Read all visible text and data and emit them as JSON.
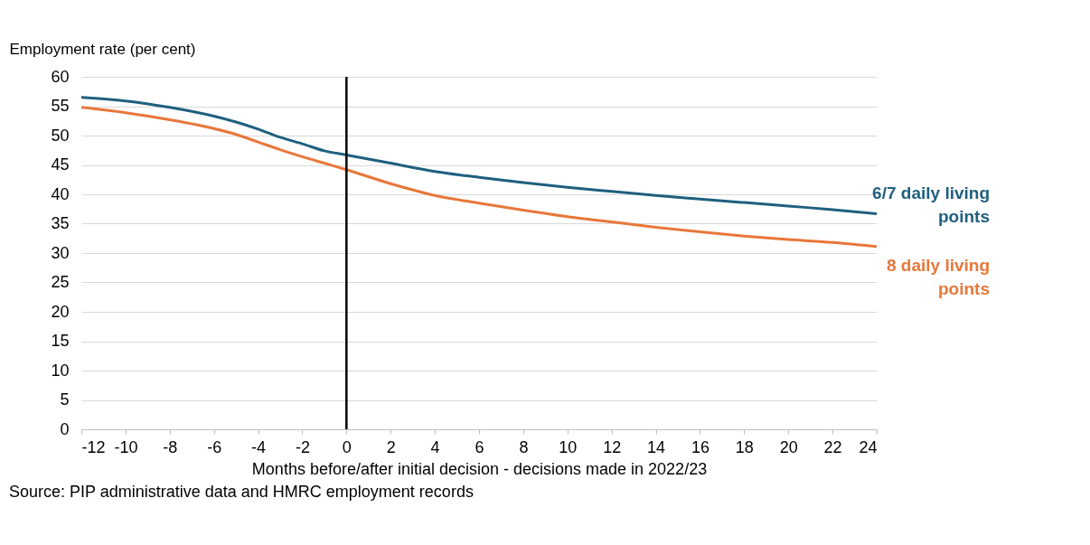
{
  "chart_data": {
    "type": "line",
    "xlabel": "Months before/after initial decision - decisions made in 2022/23",
    "ylabel": "Employment rate (per cent)",
    "x": [
      -12,
      -10,
      -8,
      -6,
      -5,
      -4,
      -3,
      -2,
      -1,
      0,
      2,
      4,
      6,
      8,
      10,
      12,
      14,
      16,
      18,
      20,
      22,
      24
    ],
    "series": [
      {
        "name": "6/7 daily living points",
        "color": "#1f5f7f",
        "values": [
          56.5,
          55.9,
          54.8,
          53.3,
          52.3,
          51.1,
          49.7,
          48.6,
          47.4,
          46.7,
          45.3,
          43.9,
          42.9,
          42.0,
          41.2,
          40.5,
          39.8,
          39.2,
          38.6,
          38.0,
          37.4,
          36.7
        ]
      },
      {
        "name": "8 daily living points",
        "color": "#e8773a",
        "values": [
          54.8,
          53.9,
          52.7,
          51.2,
          50.2,
          48.9,
          47.6,
          46.4,
          45.3,
          44.2,
          41.8,
          39.8,
          38.5,
          37.3,
          36.2,
          35.3,
          34.4,
          33.6,
          32.9,
          32.3,
          31.8,
          31.1
        ]
      }
    ],
    "xlim": [
      -12,
      24
    ],
    "xticks": [
      -12,
      -10,
      -8,
      -6,
      -4,
      -2,
      0,
      2,
      4,
      6,
      8,
      10,
      12,
      14,
      16,
      18,
      20,
      22,
      24
    ],
    "ylim": [
      0,
      60
    ],
    "yticks": [
      0,
      5,
      10,
      15,
      20,
      25,
      30,
      35,
      40,
      45,
      50,
      55,
      60
    ],
    "grid": "y",
    "line_style": "solid",
    "ref_lines": [
      {
        "axis": "x",
        "value": 0,
        "color": "#000000"
      }
    ],
    "annotations": [
      "Source: PIP administrative data and HMRC employment records"
    ]
  }
}
